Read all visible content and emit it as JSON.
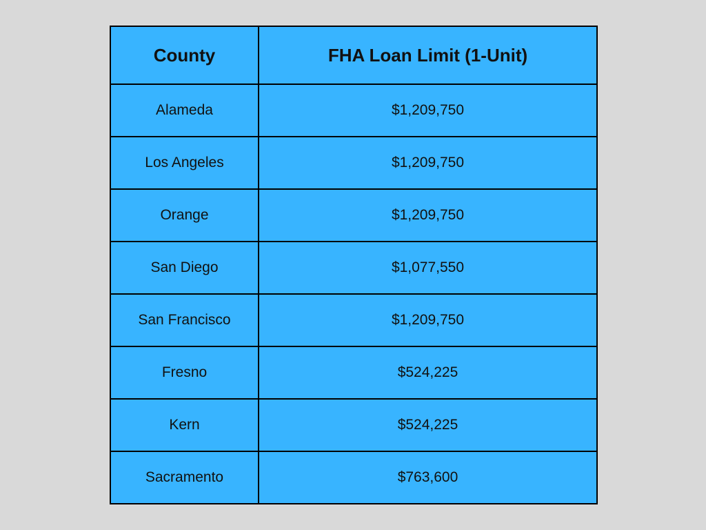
{
  "colors": {
    "background": "#d9d9d9",
    "table_fill": "#38b4ff",
    "border": "#000000",
    "text": "#111111"
  },
  "table": {
    "headers": [
      "County",
      "FHA Loan Limit (1-Unit)"
    ],
    "rows": [
      [
        "Alameda",
        "$1,209,750"
      ],
      [
        "Los Angeles",
        "$1,209,750"
      ],
      [
        "Orange",
        "$1,209,750"
      ],
      [
        "San Diego",
        "$1,077,550"
      ],
      [
        "San Francisco",
        "$1,209,750"
      ],
      [
        "Fresno",
        "$524,225"
      ],
      [
        "Kern",
        "$524,225"
      ],
      [
        "Sacramento",
        "$763,600"
      ]
    ]
  }
}
